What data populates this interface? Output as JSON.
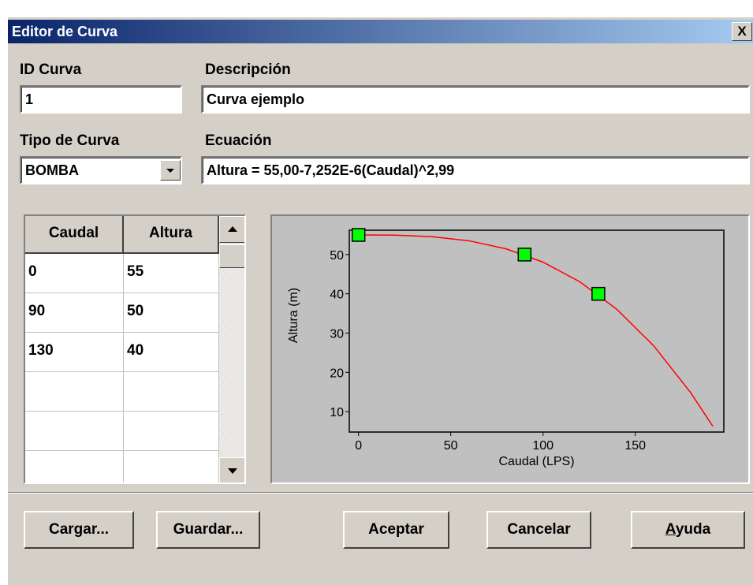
{
  "window": {
    "title": "Editor de Curva",
    "close": "X"
  },
  "fields": {
    "id": {
      "label": "ID Curva",
      "value": "1"
    },
    "description": {
      "label": "Descripción",
      "value": "Curva ejemplo"
    },
    "type": {
      "label": "Tipo de Curva",
      "value": "BOMBA"
    },
    "equation": {
      "label": "Ecuación",
      "value": "Altura = 55,00-7,252E-6(Caudal)^2,99"
    }
  },
  "table": {
    "headers": [
      "Caudal",
      "Altura"
    ],
    "rows": [
      [
        0,
        55
      ],
      [
        90,
        50
      ],
      [
        130,
        40
      ]
    ]
  },
  "chart_data": {
    "type": "line",
    "x_label": "Caudal (LPS)",
    "y_label": "Altura (m)",
    "xlim": [
      -5,
      198
    ],
    "ylim": [
      4.8,
      56.2
    ],
    "xticks": [
      0,
      50,
      100,
      150
    ],
    "yticks": [
      10,
      20,
      30,
      40,
      50
    ],
    "curve": {
      "color": "#ff0000",
      "x": [
        0,
        20,
        40,
        60,
        80,
        100,
        120,
        140,
        160,
        180,
        192
      ],
      "values": [
        55,
        54.94,
        54.55,
        53.5,
        51.45,
        48.07,
        43.05,
        36.06,
        26.77,
        14.85,
        6.3
      ]
    },
    "marker_color": "#00ff00"
  },
  "buttons": [
    "Cargar...",
    "Guardar...",
    "Aceptar",
    "Cancelar",
    "Ayuda"
  ]
}
